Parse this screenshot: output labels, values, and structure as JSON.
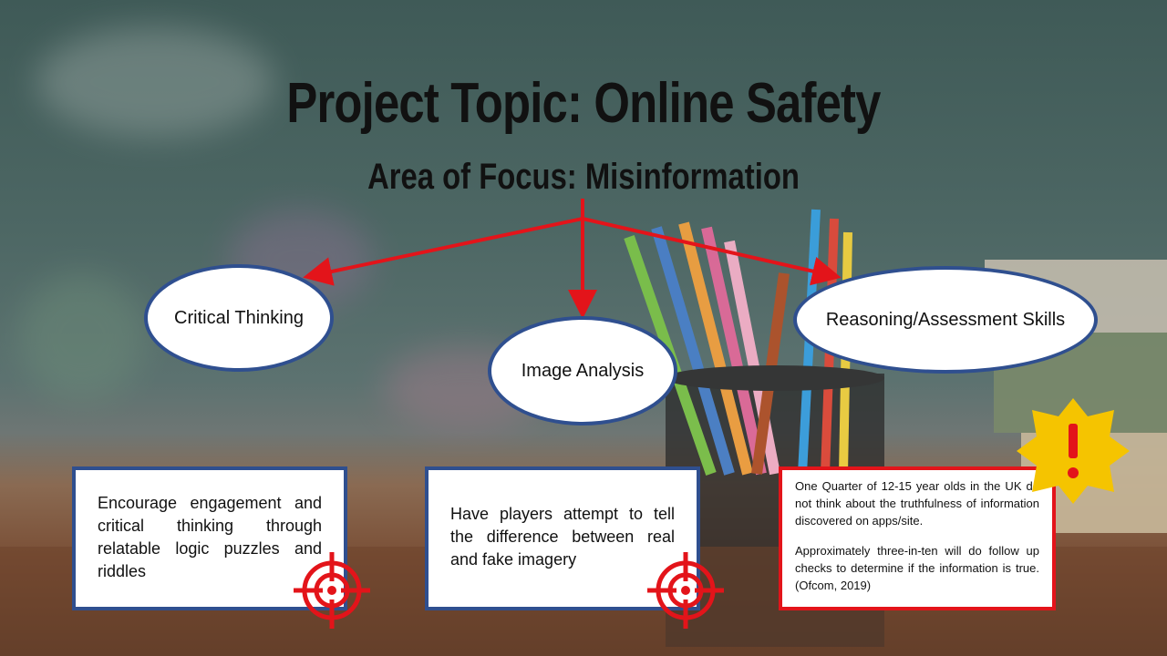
{
  "slide": {
    "title": "Project Topic: Online Safety",
    "subtitle": "Area of Focus: Misinformation"
  },
  "nodes": [
    {
      "id": "critical",
      "label": "Critical Thinking"
    },
    {
      "id": "image",
      "label": "Image Analysis"
    },
    {
      "id": "reasoning",
      "label": "Reasoning/Assessment Skills"
    }
  ],
  "boxes": {
    "critical_text": "Encourage engagement and critical thinking through relatable logic puzzles and riddles",
    "image_text": "Have players attempt to tell the difference between real and fake imagery",
    "stat_para1": "One Quarter of 12-15 year olds in the UK do not think about the truthfulness of information discovered on apps/site.",
    "stat_para2": "Approximately three-in-ten will do follow up checks to determine if the information is true. (Ofcom, 2019)"
  },
  "colors": {
    "arrow": "#e3141a",
    "ellipse_border": "#2f4f8f",
    "warning_star": "#f5c400",
    "target": "#e3141a"
  },
  "icons": [
    "target-icon",
    "target-icon",
    "warning-star-icon"
  ]
}
